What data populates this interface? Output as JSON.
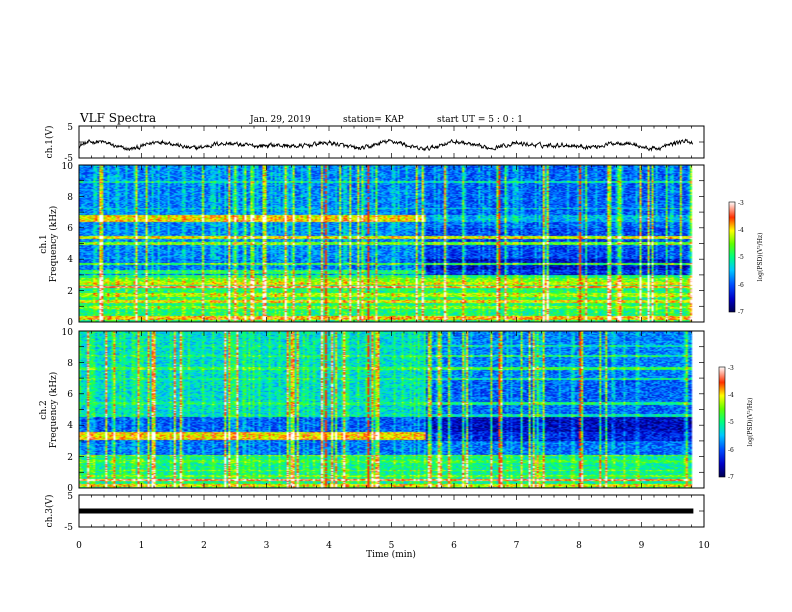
{
  "header": {
    "title": "VLF Spectra",
    "date": "Jan. 29, 2019",
    "station": "station= KAP",
    "start": "start  UT =  5 : 0  : 1"
  },
  "chart_data": [
    {
      "type": "line",
      "panel": "top-waveform",
      "ylabel": "ch.1(V)",
      "ylim": [
        -5,
        5
      ],
      "yticks": [
        "5",
        "-5"
      ],
      "xlim": [
        0,
        10
      ],
      "data_end_min": 9.83,
      "description_values": "noisy waveform oscillating roughly between -3 and 1 V"
    },
    {
      "type": "heatmap",
      "panel": "ch1-spectrogram",
      "ylabel": "ch.1",
      "ylabel2": "Frequency (kHz)",
      "ylim": [
        0,
        10
      ],
      "yticks": [
        "0",
        "2",
        "4",
        "6",
        "8",
        "10"
      ],
      "xlim": [
        0,
        10
      ],
      "data_end_min": 9.83,
      "change_min": 5.55,
      "colorbar": {
        "label": "log(PSD)(V²/Hz)",
        "min": -7,
        "max": -3,
        "ticks": [
          "-3",
          "-4",
          "-5",
          "-6",
          "-7"
        ]
      }
    },
    {
      "type": "heatmap",
      "panel": "ch2-spectrogram",
      "ylabel": "ch.2",
      "ylabel2": "Frequency (kHz)",
      "ylim": [
        0,
        10
      ],
      "yticks": [
        "0",
        "2",
        "4",
        "6",
        "8",
        "10"
      ],
      "xlim": [
        0,
        10
      ],
      "data_end_min": 9.83,
      "change_min": 5.55,
      "colorbar": {
        "label": "log(PSD)(V²/Hz)",
        "min": -7,
        "max": -3,
        "ticks": [
          "-3",
          "-4",
          "-5",
          "-6",
          "-7"
        ]
      }
    },
    {
      "type": "line",
      "panel": "bottom-waveform",
      "ylabel": "ch.3(V)",
      "ylim": [
        -5,
        5
      ],
      "yticks": [
        "5",
        "-5"
      ],
      "value": 0,
      "xlim": [
        0,
        10
      ],
      "data_end_min": 9.83,
      "xlabel": "Time (min)",
      "xticks": [
        "0",
        "1",
        "2",
        "3",
        "4",
        "5",
        "6",
        "7",
        "8",
        "9",
        "10"
      ]
    }
  ]
}
